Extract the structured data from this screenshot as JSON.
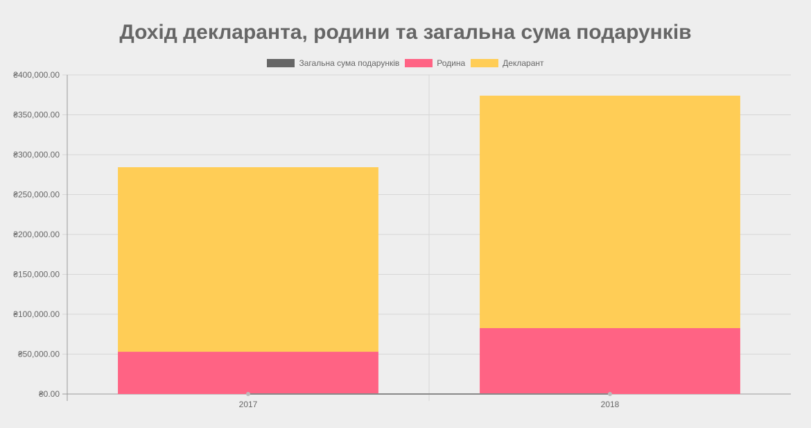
{
  "chart_data": {
    "type": "bar",
    "stacked": true,
    "title": "Дохід декларанта, родини та загальна сума подарунків",
    "categories": [
      "2017",
      "2018"
    ],
    "series": [
      {
        "name": "Загальна сума подарунків",
        "values": [
          0,
          0
        ],
        "color": "#666666",
        "render": "line"
      },
      {
        "name": "Родина",
        "values": [
          53000,
          82600
        ],
        "color": "#ff6384"
      },
      {
        "name": "Декларант",
        "values": [
          231300,
          291400
        ],
        "color": "#ffcd56"
      }
    ],
    "ylim": [
      0,
      400000
    ],
    "yticks": [
      "₴0.00",
      "₴50,000.00",
      "₴100,000.00",
      "₴150,000.00",
      "₴200,000.00",
      "₴250,000.00",
      "₴300,000.00",
      "₴350,000.00",
      "₴400,000.00"
    ],
    "xlabel": "",
    "ylabel": "",
    "grid": true,
    "legend": "top-center"
  }
}
